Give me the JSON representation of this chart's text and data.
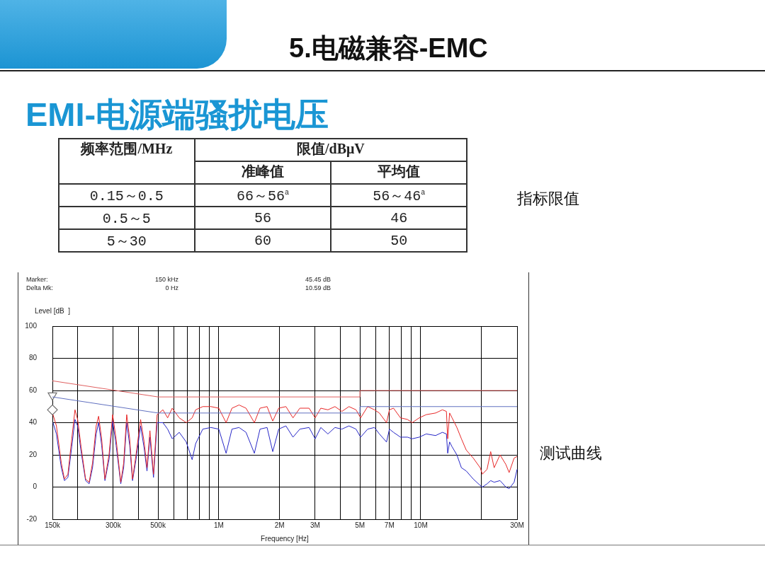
{
  "chart_data": {
    "type": "line",
    "title": "5.电磁兼容-EMC",
    "subtitle": "EMI-电源端骚扰电压",
    "xlabel": "Frequency [Hz]",
    "ylabel": "Level [dB  ]",
    "annotations": [
      "频率范围/MHz",
      "限值/dBμV",
      "准峰值",
      "平均值",
      "0.15～0.5",
      "66～56$^{a}$",
      "56～46$^{a}$",
      "0.5～5",
      "56",
      "46",
      "5～30",
      "60",
      "50",
      "指标限值",
      "测试曲线",
      "Marker:",
      "150 kHz",
      "45.45 dB",
      "Delta Mk:",
      "0 Hz",
      "10.59 dB"
    ],
    "log": "x",
    "grid": true,
    "legend": false,
    "marker": "none",
    "xlim": [
      150000,
      30000000
    ],
    "xticks": [
      {
        "value": 150000,
        "label": "150k"
      },
      {
        "value": 200000,
        "label": null
      },
      {
        "value": 300000,
        "label": "300k"
      },
      {
        "value": 400000,
        "label": null
      },
      {
        "value": 500000,
        "label": "500k"
      },
      {
        "value": 600000,
        "label": null
      },
      {
        "value": 700000,
        "label": null
      },
      {
        "value": 800000,
        "label": null
      },
      {
        "value": 900000,
        "label": null
      },
      {
        "value": 1000000,
        "label": "1M"
      },
      {
        "value": 2000000,
        "label": "2M"
      },
      {
        "value": 3000000,
        "label": "3M"
      },
      {
        "value": 4000000,
        "label": null
      },
      {
        "value": 5000000,
        "label": "5M"
      },
      {
        "value": 6000000,
        "label": null
      },
      {
        "value": 7000000,
        "label": "7M"
      },
      {
        "value": 8000000,
        "label": null
      },
      {
        "value": 9000000,
        "label": null
      },
      {
        "value": 10000000,
        "label": "10M"
      },
      {
        "value": 20000000,
        "label": null
      },
      {
        "value": 30000000,
        "label": "30M"
      }
    ],
    "ylim": [
      -20,
      100
    ],
    "yticks": [
      -20,
      0,
      20,
      40,
      60,
      80,
      100
    ],
    "series": [
      {
        "color": "#e06060",
        "x": [
          150000,
          500000,
          5000000,
          5000000,
          30000000
        ],
        "values": [
          66,
          56,
          56,
          60,
          60
        ]
      },
      {
        "color": "#6070c0",
        "x": [
          150000,
          500000,
          5000000,
          5000000,
          30000000
        ],
        "values": [
          56,
          46,
          46,
          50,
          50
        ]
      },
      {
        "color": "#e82828",
        "x": [
          151000,
          157000,
          166000,
          172000,
          179000,
          187000,
          194000,
          200000,
          208000,
          219000,
          228000,
          237000,
          247000,
          254000,
          263000,
          273000,
          286000,
          298000,
          310000,
          327000,
          338000,
          350000,
          362000,
          374000,
          389000,
          410000,
          427000,
          441000,
          456000,
          475000,
          495000,
          529000,
          558000,
          588000,
          637000,
          690000,
          738000,
          768000,
          833000,
          914000,
          1000000,
          1087000,
          1162000,
          1260000,
          1364000,
          1500000,
          1600000,
          1734000,
          1850000,
          1980000,
          2150000,
          2330000,
          2520000,
          2800000,
          3000000,
          3200000,
          3470000,
          3760000,
          4070000,
          4410000,
          4780000,
          5040000,
          5460000,
          5900000,
          6240000,
          6770000,
          7000000,
          7330000,
          7940000,
          8600000,
          9070000,
          9830000,
          10650000,
          11850000,
          12800000,
          13400000,
          13600000,
          13900000,
          14300000,
          15100000,
          15900000,
          16800000,
          18200000,
          19700000,
          20200000,
          21300000,
          22200000,
          23100000,
          24700000,
          26400000,
          27400000,
          29000000,
          30000000
        ],
        "values": [
          45,
          38,
          15,
          5,
          8,
          30,
          48,
          42,
          25,
          5,
          3,
          15,
          38,
          44,
          30,
          5,
          20,
          45,
          30,
          3,
          15,
          45,
          30,
          5,
          20,
          42,
          28,
          12,
          35,
          8,
          45,
          48,
          43,
          49,
          43,
          40,
          43,
          48,
          50,
          50,
          49,
          40,
          49,
          51,
          49,
          40,
          49,
          50,
          41,
          49,
          50,
          43,
          49,
          49,
          43,
          49,
          48,
          50,
          47,
          50,
          48,
          43,
          50,
          48,
          46,
          40,
          48,
          49,
          43,
          42,
          40,
          43,
          45,
          46,
          48,
          47,
          30,
          46,
          43,
          37,
          30,
          23,
          18,
          12,
          8,
          11,
          22,
          12,
          20,
          14,
          9,
          18,
          19
        ]
      },
      {
        "color": "#2828c8",
        "x": [
          151000,
          157000,
          166000,
          172000,
          179000,
          187000,
          194000,
          200000,
          208000,
          219000,
          228000,
          237000,
          247000,
          254000,
          263000,
          273000,
          286000,
          298000,
          310000,
          327000,
          338000,
          350000,
          362000,
          374000,
          389000,
          410000,
          427000,
          441000,
          456000,
          475000,
          495000,
          529000,
          558000,
          588000,
          637000,
          690000,
          738000,
          768000,
          833000,
          914000,
          1000000,
          1087000,
          1162000,
          1260000,
          1364000,
          1500000,
          1600000,
          1734000,
          1850000,
          1980000,
          2150000,
          2330000,
          2520000,
          2800000,
          3000000,
          3200000,
          3470000,
          3760000,
          4070000,
          4410000,
          4780000,
          5040000,
          5460000,
          5900000,
          6240000,
          6770000,
          7000000,
          7330000,
          7940000,
          8600000,
          9070000,
          9830000,
          10650000,
          11850000,
          12800000,
          13400000,
          13600000,
          13900000,
          14300000,
          15100000,
          15900000,
          16800000,
          18200000,
          19700000,
          20200000,
          21300000,
          22200000,
          23100000,
          24700000,
          26400000,
          27400000,
          29000000,
          30000000
        ],
        "values": [
          40,
          33,
          12,
          4,
          6,
          25,
          42,
          38,
          22,
          4,
          2,
          12,
          33,
          40,
          26,
          4,
          17,
          41,
          26,
          2,
          12,
          40,
          26,
          4,
          17,
          38,
          24,
          10,
          31,
          6,
          40,
          40,
          36,
          30,
          34,
          28,
          17,
          27,
          36,
          37,
          36,
          21,
          36,
          37,
          34,
          21,
          36,
          37,
          22,
          36,
          38,
          31,
          36,
          37,
          30,
          37,
          33,
          37,
          36,
          38,
          36,
          31,
          36,
          37,
          33,
          28,
          36,
          34,
          31,
          31,
          30,
          31,
          33,
          32,
          34,
          33,
          21,
          28,
          25,
          20,
          12,
          10,
          5,
          1,
          0,
          2,
          4,
          3,
          4,
          0,
          -1,
          3,
          11
        ]
      },
      {
        "type": "scatter",
        "marker": "triangle",
        "color": "#707070",
        "x": [
          150000
        ],
        "values": [
          57
        ]
      },
      {
        "type": "scatter",
        "marker": "diamond",
        "color": "#707070",
        "x": [
          150000
        ],
        "values": [
          48
        ]
      }
    ]
  }
}
